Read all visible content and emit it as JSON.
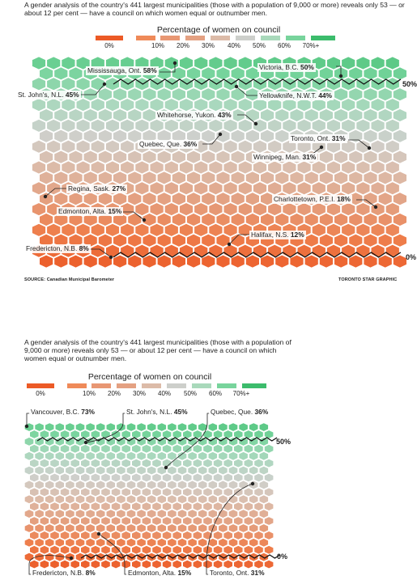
{
  "chart_data": [
    {
      "type": "hexagon tile grid",
      "intro": "A gender analysis of the country's 441 largest municipalities (those with a population of 9,000 or more) reveals only 53 — or about 12 per cent — have a council on which women equal or outnumber men.",
      "legend": {
        "title": "Percentage of women on council",
        "ticks": [
          "0%",
          "10%",
          "20%",
          "30%",
          "40%",
          "50%",
          "60%",
          "70%+"
        ],
        "colors": [
          "#ec5a26",
          "#ef8a59",
          "#e4a182",
          "#dcbba8",
          "#cdcfcb",
          "#a9d9bb",
          "#78d49c",
          "#3cbc6c"
        ]
      },
      "threshold_labels": [
        "50%",
        "0%"
      ],
      "callouts": [
        {
          "name": "Mississauga, Ont.",
          "value": "58%",
          "pct": 58
        },
        {
          "name": "Victoria, B.C.",
          "value": "50%",
          "pct": 50
        },
        {
          "name": "St. John's, N.L.",
          "value": "45%",
          "pct": 45
        },
        {
          "name": "Yellowknife, N.W.T.",
          "value": "44%",
          "pct": 44
        },
        {
          "name": "Whitehorse, Yukon.",
          "value": "43%",
          "pct": 43
        },
        {
          "name": "Quebec, Que.",
          "value": "36%",
          "pct": 36
        },
        {
          "name": "Toronto, Ont.",
          "value": "31%",
          "pct": 31
        },
        {
          "name": "Winnipeg, Man.",
          "value": "31%",
          "pct": 31
        },
        {
          "name": "Regina, Sask.",
          "value": "27%",
          "pct": 27
        },
        {
          "name": "Charlottetown, P.E.I.",
          "value": "18%",
          "pct": 18
        },
        {
          "name": "Edmonton, Alta.",
          "value": "15%",
          "pct": 15
        },
        {
          "name": "Halifax, N.S.",
          "value": "12%",
          "pct": 12
        },
        {
          "name": "Fredericton, N.B.",
          "value": "8%",
          "pct": 8
        }
      ],
      "source": "SOURCE: Canadian Municipal Barometer",
      "credit": "TORONTO STAR GRAPHIC"
    },
    {
      "type": "hexagon tile grid",
      "intro": "A gender analysis of the country's 441 largest municipalities (those with a population of 9,000 or more) reveals only 53 — or about 12 per cent — have a council on which women equal or outnumber men.",
      "legend": {
        "title": "Percentage of women on council",
        "ticks": [
          "0%",
          "10%",
          "20%",
          "30%",
          "40%",
          "50%",
          "60%",
          "70%+"
        ],
        "colors": [
          "#ec5a26",
          "#ef8a59",
          "#e4a182",
          "#dcbba8",
          "#cdcfcb",
          "#a9d9bb",
          "#78d49c",
          "#3cbc6c"
        ]
      },
      "threshold_labels": [
        "50%",
        "0%"
      ],
      "callouts": [
        {
          "name": "Vancouver, B.C.",
          "value": "73%",
          "pct": 73
        },
        {
          "name": "St. John's, N.L.",
          "value": "45%",
          "pct": 45
        },
        {
          "name": "Quebec, Que.",
          "value": "36%",
          "pct": 36
        },
        {
          "name": "Fredericton, N.B.",
          "value": "8%",
          "pct": 8
        },
        {
          "name": "Edmonton, Alta.",
          "value": "15%",
          "pct": 15
        },
        {
          "name": "Toronto, Ont.",
          "value": "31%",
          "pct": 31
        }
      ]
    }
  ]
}
